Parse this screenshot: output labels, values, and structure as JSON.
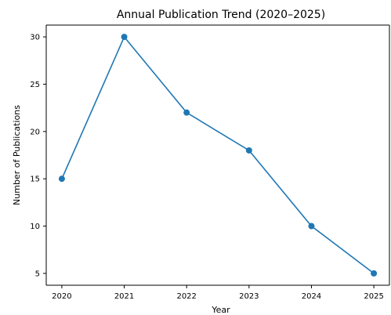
{
  "chart_data": {
    "type": "line",
    "title": "Annual Publication Trend (2020–2025)",
    "xlabel": "Year",
    "ylabel": "Number of Publications",
    "x": [
      2020,
      2021,
      2022,
      2023,
      2024,
      2025
    ],
    "series": [
      {
        "values": [
          15,
          30,
          22,
          18,
          10,
          5
        ],
        "color": "#1f77b4",
        "marker": "circle"
      }
    ],
    "x_ticks": [
      "2020",
      "2021",
      "2022",
      "2023",
      "2024",
      "2025"
    ],
    "y_ticks": [
      5,
      10,
      15,
      20,
      25,
      30
    ],
    "xlim": [
      2019.75,
      2025.25
    ],
    "ylim": [
      3.75,
      31.25
    ],
    "grid": false,
    "legend": "none"
  }
}
